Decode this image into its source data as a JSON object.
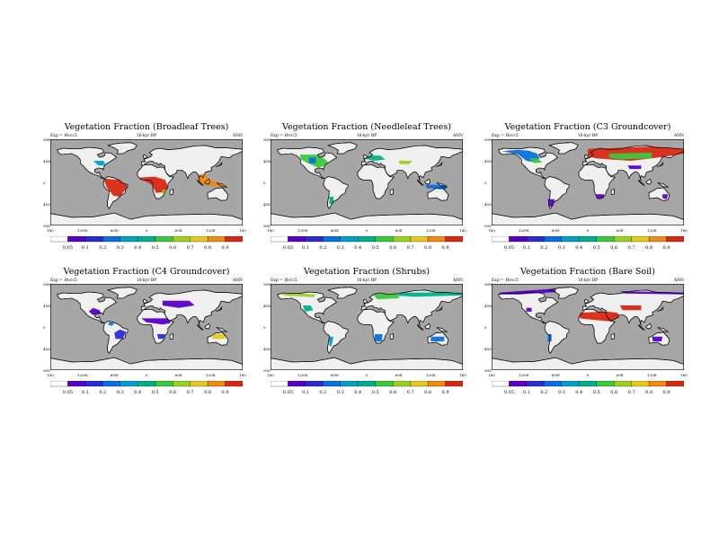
{
  "run": "Exp = Hvcc5",
  "period": "16-kyr BP",
  "season": "ANN",
  "lat_labels": [
    "90N",
    "45N",
    "0",
    "45S",
    "90S"
  ],
  "lon_labels": [
    "180",
    "120W",
    "60W",
    "0",
    "60E",
    "120E",
    "180"
  ],
  "colorbar": {
    "labels": [
      "0.05",
      "0.1",
      "0.2",
      "0.3",
      "0.4",
      "0.5",
      "0.6",
      "0.7",
      "0.8",
      "0.9"
    ],
    "colors": [
      "#ffffff",
      "#5a00c8",
      "#2b2bd4",
      "#0a6fe0",
      "#00a0c8",
      "#00b08c",
      "#3cc83c",
      "#9ad21e",
      "#e6c81e",
      "#ef8a14",
      "#d72814"
    ]
  },
  "colors": {
    "ocean": "#a6a6a6",
    "land": "#f0f0f0",
    "coast": "#000000"
  },
  "panels": [
    {
      "title": "Vegetation Fraction (Broadleaf Trees)"
    },
    {
      "title": "Vegetation Fraction (Needleleaf Trees)"
    },
    {
      "title": "Vegetation Fraction (C3 Groundcover)"
    },
    {
      "title": "Vegetation Fraction (C4 Groundcover)"
    },
    {
      "title": "Vegetation Fraction (Shrubs)"
    },
    {
      "title": "Vegetation Fraction (Bare Soil)"
    }
  ]
}
